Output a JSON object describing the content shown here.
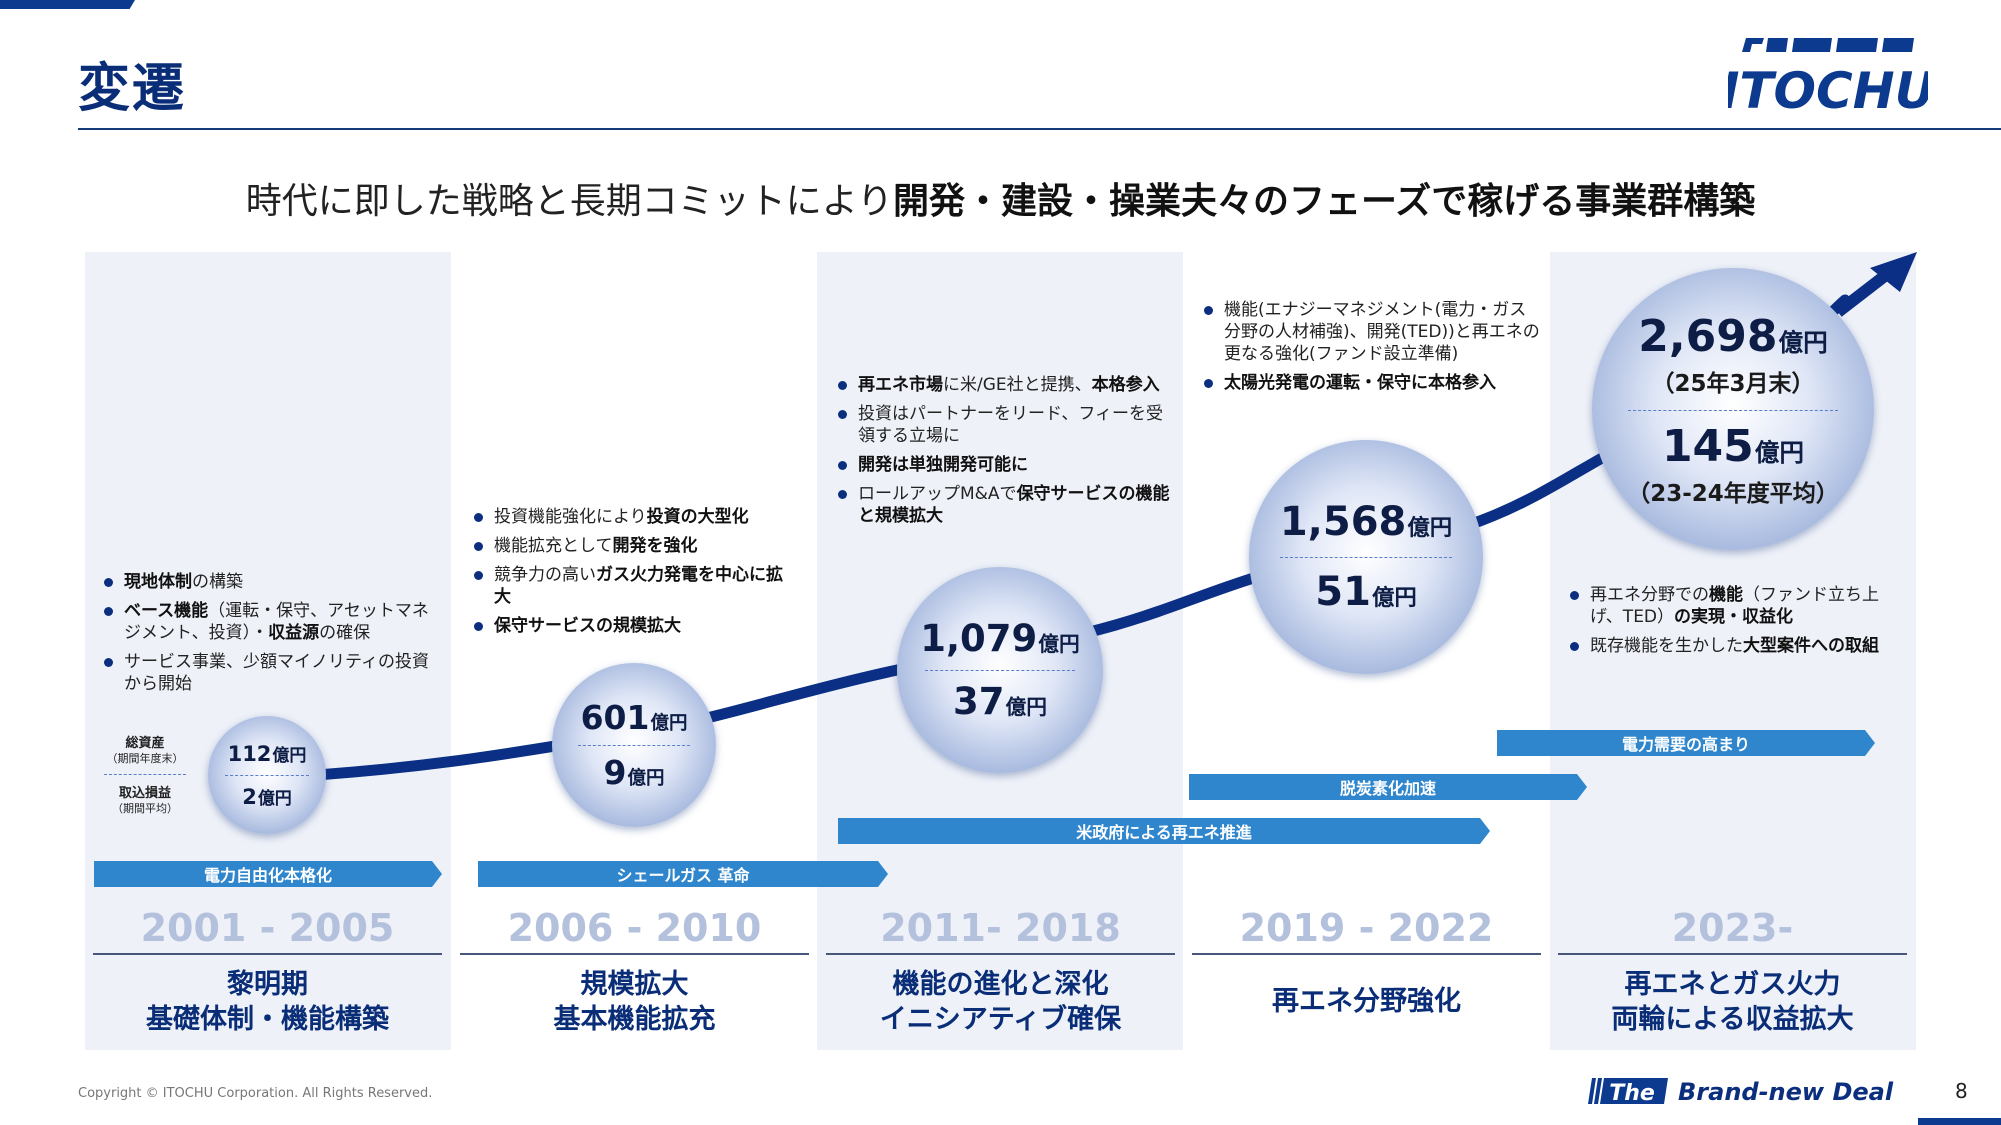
{
  "slide": {
    "title": "変遷",
    "logo_text": "ITOCHU",
    "tagline_plain": "時代に即した戦略と長期コミットにより",
    "tagline_bold": "開発・建設・操業夫々のフェーズで稼げる事業群構築",
    "copyright": "Copyright © ITOCHU Corporation. All Rights Reserved.",
    "brand_the": "The",
    "brand_rest": "Brand-new Deal",
    "page_number": "8"
  },
  "colors": {
    "navy": "#0a2d77",
    "banner_blue": "#2f86cc",
    "column_bg": "#eef1f8"
  },
  "labels": {
    "total_assets": "総資産",
    "total_assets_sub": "（期間年度末）",
    "income": "取込損益",
    "income_sub": "（期間平均）"
  },
  "periods": [
    {
      "years": "2001 - 2005",
      "phase_line1": "黎明期",
      "phase_line2": "基礎体制・機能構築",
      "assets": "112",
      "assets_unit": "億円",
      "income": "2",
      "income_unit": "億円",
      "bullets": [
        {
          "b1": "現地体制",
          "t1": "の構築"
        },
        {
          "b1": "ベース機能",
          "t1": "（運転・保守、アセットマネジメント、投資）・",
          "b2": "収益源",
          "t2": "の確保"
        },
        {
          "t1": "サービス事業、少額マイノリティの投資から開始"
        }
      ]
    },
    {
      "years": "2006 - 2010",
      "phase_line1": "規模拡大",
      "phase_line2": "基本機能拡充",
      "assets": "601",
      "assets_unit": "億円",
      "income": "9",
      "income_unit": "億円",
      "bullets": [
        {
          "t1": "投資機能強化により",
          "b1": "投資の大型化"
        },
        {
          "t1": "機能拡充として",
          "b1": "開発を強化"
        },
        {
          "t1": "競争力の高い",
          "b1": "ガス火力発電を中心に拡大"
        },
        {
          "b1": "保守サービスの規模拡大"
        }
      ]
    },
    {
      "years": "2011- 2018",
      "phase_line1": "機能の進化と深化",
      "phase_line2": "イニシアティブ確保",
      "assets": "1,079",
      "assets_unit": "億円",
      "income": "37",
      "income_unit": "億円",
      "bullets": [
        {
          "b1": "再エネ市場",
          "t1": "に米/GE社と提携、",
          "b2": "本格参入"
        },
        {
          "t1": "投資はパートナーをリード、フィーを受領する立場に"
        },
        {
          "b1": "開発は単独開発可能に"
        },
        {
          "t1": "ロールアップM&Aで",
          "b1": "保守サービスの機能と規模拡大"
        }
      ]
    },
    {
      "years": "2019 - 2022",
      "phase_line1": "再エネ分野強化",
      "phase_line2": "",
      "assets": "1,568",
      "assets_unit": "億円",
      "income": "51",
      "income_unit": "億円",
      "bullets": [
        {
          "t1": "機能(エナジーマネジメント(電力・ガス分野の人材補強)、開発(TED))と再エネの更なる強化(ファンド設立準備)"
        },
        {
          "b1": "太陽光発電の運転・保守に本格参入"
        }
      ]
    },
    {
      "years": "2023-",
      "phase_line1": "再エネとガス火力",
      "phase_line2": "両輪による収益拡大",
      "assets": "2,698",
      "assets_unit": "億円",
      "assets_note": "（25年3月末）",
      "income": "145",
      "income_unit": "億円",
      "income_note": "（23-24年度平均）",
      "bullets": [
        {
          "t1": "再エネ分野での",
          "b1": "機能",
          "t2": "（ファンド立ち上げ、TED）",
          "b2": "の実現・収益化"
        },
        {
          "t1": "既存機能を生かした",
          "b1": "大型案件への取組"
        }
      ]
    }
  ],
  "banners": [
    {
      "text": "電力自由化本格化"
    },
    {
      "text": "シェールガス 革命"
    },
    {
      "text": "米政府による再エネ推進"
    },
    {
      "text": "脱炭素化加速"
    },
    {
      "text": "電力需要の高まり"
    }
  ]
}
